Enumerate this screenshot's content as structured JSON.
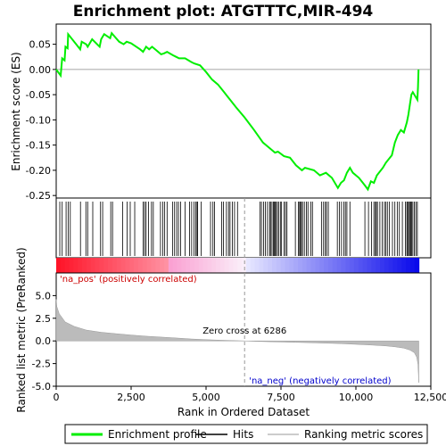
{
  "chart_data": {
    "type": "line",
    "title": "Enrichment plot: ATGTTTC,MIR-494",
    "xlabel": "Rank in Ordered Dataset",
    "ylabel_top": "Enrichment score (ES)",
    "ylabel_bottom": "Ranked list metric (PreRanked)",
    "xlim": [
      0,
      12500
    ],
    "x_ticks": [
      0,
      2500,
      5000,
      7500,
      10000,
      12500
    ],
    "x_tick_labels": [
      "0",
      "2,500",
      "5,000",
      "7,500",
      "10,000",
      "12,500"
    ],
    "es_ylim": [
      -0.255,
      0.09
    ],
    "es_ticks": [
      0.05,
      0.0,
      -0.05,
      -0.1,
      -0.15,
      -0.2,
      -0.25
    ],
    "es_tick_labels": [
      "0.05",
      "0.00",
      "-0.05",
      "-0.10",
      "-0.15",
      "-0.20",
      "-0.25"
    ],
    "metric_ylim": [
      -5.0,
      7.5
    ],
    "metric_ticks": [
      5.0,
      2.5,
      0.0,
      -2.5,
      -5.0
    ],
    "metric_tick_labels": [
      "5.0",
      "2.5",
      "0.0",
      "-2.5",
      "-5.0"
    ],
    "n_genes": 12100,
    "zero_cross": 6286,
    "zero_cross_label": "Zero cross at 6286",
    "pos_label": "'na_pos' (positively correlated)",
    "neg_label": "'na_neg' (negatively correlated)",
    "es_curve": [
      [
        0,
        0.0
      ],
      [
        150,
        -0.012
      ],
      [
        200,
        0.022
      ],
      [
        280,
        0.018
      ],
      [
        310,
        0.045
      ],
      [
        380,
        0.042
      ],
      [
        400,
        0.07
      ],
      [
        800,
        0.04
      ],
      [
        850,
        0.055
      ],
      [
        1000,
        0.05
      ],
      [
        1050,
        0.045
      ],
      [
        1200,
        0.06
      ],
      [
        1450,
        0.045
      ],
      [
        1500,
        0.06
      ],
      [
        1600,
        0.07
      ],
      [
        1800,
        0.062
      ],
      [
        1850,
        0.072
      ],
      [
        2100,
        0.055
      ],
      [
        2250,
        0.05
      ],
      [
        2350,
        0.055
      ],
      [
        2500,
        0.052
      ],
      [
        2800,
        0.04
      ],
      [
        2900,
        0.035
      ],
      [
        3000,
        0.045
      ],
      [
        3100,
        0.04
      ],
      [
        3200,
        0.045
      ],
      [
        3300,
        0.04
      ],
      [
        3500,
        0.03
      ],
      [
        3600,
        0.032
      ],
      [
        3700,
        0.035
      ],
      [
        3900,
        0.028
      ],
      [
        4000,
        0.025
      ],
      [
        4100,
        0.022
      ],
      [
        4300,
        0.022
      ],
      [
        4500,
        0.015
      ],
      [
        4600,
        0.012
      ],
      [
        4800,
        0.008
      ],
      [
        5000,
        -0.005
      ],
      [
        5200,
        -0.02
      ],
      [
        5400,
        -0.03
      ],
      [
        5600,
        -0.045
      ],
      [
        5800,
        -0.06
      ],
      [
        6000,
        -0.075
      ],
      [
        6286,
        -0.095
      ],
      [
        6600,
        -0.12
      ],
      [
        6900,
        -0.145
      ],
      [
        7100,
        -0.155
      ],
      [
        7300,
        -0.165
      ],
      [
        7400,
        -0.163
      ],
      [
        7600,
        -0.172
      ],
      [
        7800,
        -0.175
      ],
      [
        8000,
        -0.19
      ],
      [
        8200,
        -0.2
      ],
      [
        8300,
        -0.195
      ],
      [
        8600,
        -0.2
      ],
      [
        8800,
        -0.21
      ],
      [
        9000,
        -0.205
      ],
      [
        9200,
        -0.215
      ],
      [
        9400,
        -0.235
      ],
      [
        9500,
        -0.225
      ],
      [
        9600,
        -0.22
      ],
      [
        9700,
        -0.205
      ],
      [
        9800,
        -0.195
      ],
      [
        9900,
        -0.205
      ],
      [
        10100,
        -0.215
      ],
      [
        10300,
        -0.23
      ],
      [
        10400,
        -0.238
      ],
      [
        10500,
        -0.222
      ],
      [
        10600,
        -0.225
      ],
      [
        10700,
        -0.21
      ],
      [
        10900,
        -0.195
      ],
      [
        11000,
        -0.185
      ],
      [
        11200,
        -0.17
      ],
      [
        11300,
        -0.145
      ],
      [
        11400,
        -0.13
      ],
      [
        11500,
        -0.12
      ],
      [
        11600,
        -0.125
      ],
      [
        11700,
        -0.105
      ],
      [
        11750,
        -0.09
      ],
      [
        11800,
        -0.07
      ],
      [
        11850,
        -0.05
      ],
      [
        11900,
        -0.045
      ],
      [
        12000,
        -0.055
      ],
      [
        12050,
        -0.06
      ],
      [
        12070,
        -0.035
      ],
      [
        12090,
        0.0
      ]
    ],
    "metric_curve": [
      [
        0,
        4.6
      ],
      [
        20,
        3.8
      ],
      [
        100,
        3.0
      ],
      [
        300,
        2.1
      ],
      [
        600,
        1.6
      ],
      [
        1000,
        1.2
      ],
      [
        1500,
        0.95
      ],
      [
        2000,
        0.8
      ],
      [
        2500,
        0.65
      ],
      [
        3000,
        0.52
      ],
      [
        3500,
        0.42
      ],
      [
        4000,
        0.32
      ],
      [
        4500,
        0.22
      ],
      [
        5000,
        0.14
      ],
      [
        5500,
        0.08
      ],
      [
        6000,
        0.03
      ],
      [
        6286,
        0.0
      ],
      [
        6600,
        -0.04
      ],
      [
        7000,
        -0.08
      ],
      [
        7500,
        -0.12
      ],
      [
        8000,
        -0.16
      ],
      [
        8500,
        -0.2
      ],
      [
        9000,
        -0.25
      ],
      [
        9500,
        -0.3
      ],
      [
        10000,
        -0.37
      ],
      [
        10500,
        -0.45
      ],
      [
        11000,
        -0.55
      ],
      [
        11300,
        -0.65
      ],
      [
        11600,
        -0.8
      ],
      [
        11800,
        -1.0
      ],
      [
        11950,
        -1.3
      ],
      [
        12030,
        -1.8
      ],
      [
        12070,
        -2.6
      ],
      [
        12099,
        -4.6
      ]
    ],
    "hits": [
      120,
      200,
      330,
      400,
      470,
      810,
      990,
      1050,
      1220,
      1480,
      1550,
      1820,
      1880,
      2220,
      2370,
      2470,
      2620,
      2900,
      2950,
      3000,
      3080,
      3180,
      3240,
      3480,
      3560,
      3620,
      3700,
      3880,
      3950,
      4020,
      4080,
      4150,
      4300,
      4450,
      4520,
      4600,
      4660,
      4700,
      4720,
      4840,
      5150,
      5230,
      5280,
      5520,
      5580,
      5680,
      5750,
      5800,
      5880,
      5950,
      6050,
      6800,
      6850,
      6920,
      6980,
      7050,
      7120,
      7150,
      7200,
      7250,
      7280,
      7300,
      7330,
      7380,
      7420,
      7480,
      7520,
      7600,
      7650,
      7700,
      7980,
      8080,
      8120,
      8150,
      8180,
      8220,
      8280,
      8350,
      8400,
      8500,
      8550,
      8850,
      8920,
      8980,
      9020,
      9080,
      9380,
      9450,
      9520,
      9600,
      9650,
      9700,
      9800,
      10300,
      10420,
      10520,
      10600,
      10650,
      10680,
      10720,
      10800,
      10880,
      10950,
      11000,
      11050,
      11120,
      11220,
      11300,
      11380,
      11450,
      11550,
      11650,
      11700,
      11730,
      11760,
      11800,
      11830,
      11860,
      11900,
      11950,
      12000,
      12050
    ],
    "legend": [
      {
        "label": "Enrichment profile",
        "color": "#00ee00"
      },
      {
        "label": "Hits",
        "color": "#000000"
      },
      {
        "label": "Ranking metric scores",
        "color": "#bbbbbb"
      }
    ]
  }
}
